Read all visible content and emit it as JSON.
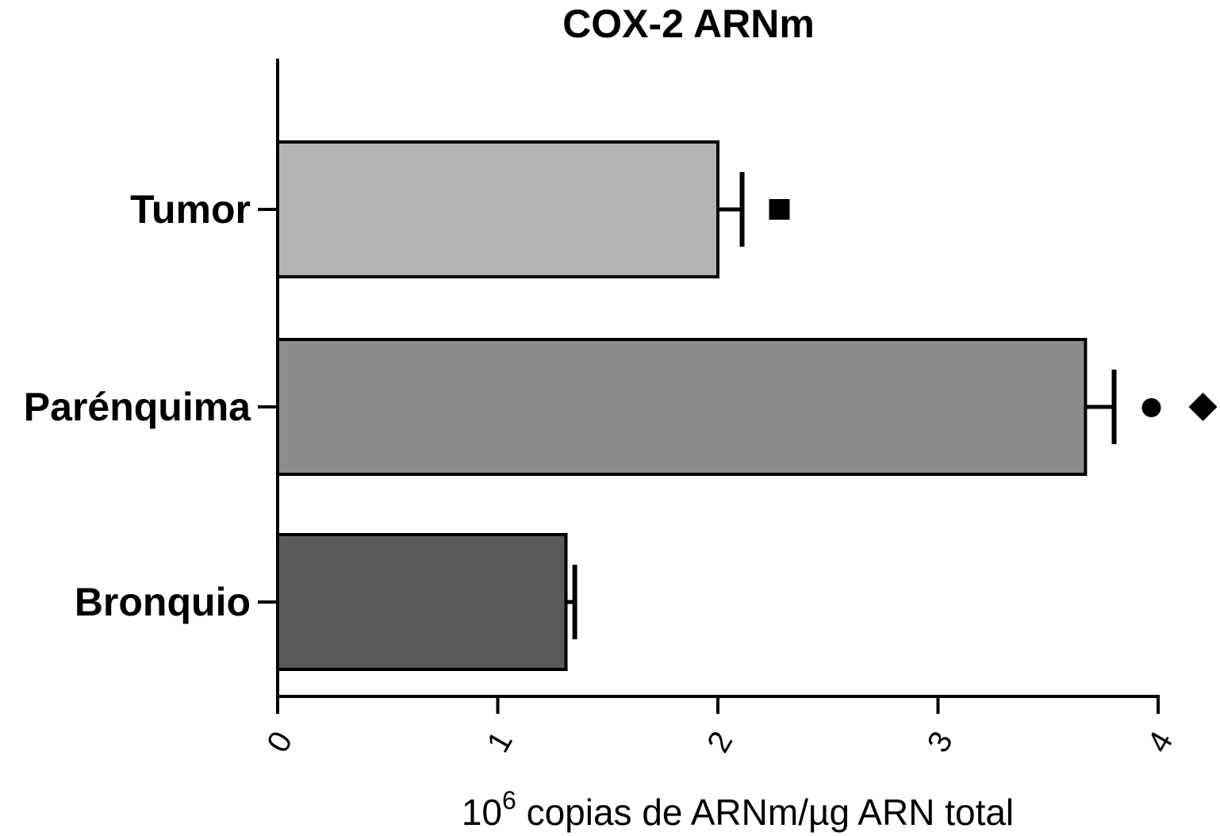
{
  "chart_data": {
    "type": "bar",
    "orientation": "horizontal",
    "title": "COX-2 ARNm",
    "categories": [
      "Tumor",
      "Parénquima",
      "Bronquio"
    ],
    "values": [
      2.0,
      3.67,
      1.31
    ],
    "errors": [
      0.11,
      0.13,
      0.04
    ],
    "bar_colors": [
      "#b3b3b3",
      "#8c8c8c",
      "#5a5a5a"
    ],
    "markers": [
      {
        "category": "Tumor",
        "symbols": [
          "square"
        ]
      },
      {
        "category": "Parénquima",
        "symbols": [
          "circle",
          "diamond"
        ]
      },
      {
        "category": "Bronquio",
        "symbols": []
      }
    ],
    "xlim": [
      0,
      4
    ],
    "xticks": [
      0,
      1,
      2,
      3,
      4
    ],
    "xtick_labels": [
      "0",
      "1",
      "2",
      "3",
      "4"
    ],
    "xlabel_base": "10",
    "xlabel_exp": "6",
    "xlabel_rest": " copias de ARNm/µg ARN total",
    "grid": false,
    "legend": "none"
  }
}
